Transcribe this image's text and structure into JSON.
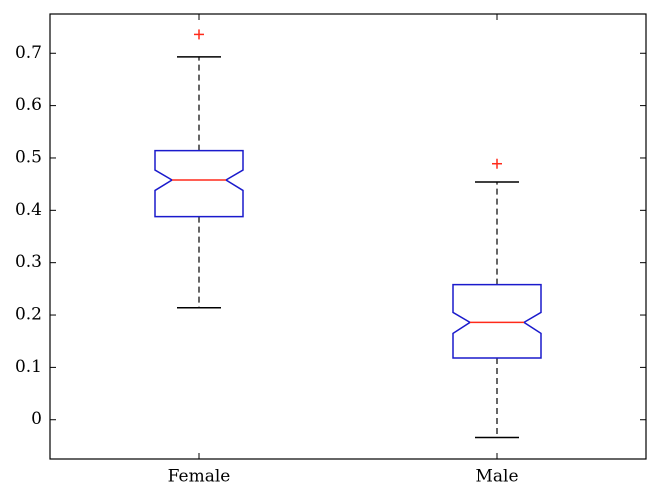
{
  "chart_data": {
    "type": "boxplot",
    "title": "",
    "xlabel": "",
    "ylabel": "",
    "ylim": [
      -0.075,
      0.775
    ],
    "yticks": [
      0,
      0.1,
      0.2,
      0.3,
      0.4,
      0.5,
      0.6,
      0.7
    ],
    "ytick_labels": [
      "0",
      "0.1",
      "0.2",
      "0.3",
      "0.4",
      "0.5",
      "0.6",
      "0.7"
    ],
    "notched": true,
    "grid": false,
    "colors": {
      "box": "#1a1acc",
      "median": "#ff2a1a",
      "outlier": "#ff2a1a",
      "whisker": "#000000"
    },
    "categories": [
      "Female",
      "Male"
    ],
    "boxes": [
      {
        "category": "Female",
        "whisker_low": 0.214,
        "q1": 0.388,
        "notch_low": 0.438,
        "median": 0.458,
        "notch_high": 0.477,
        "q3": 0.514,
        "whisker_high": 0.693,
        "outliers": [
          0.736
        ]
      },
      {
        "category": "Male",
        "whisker_low": -0.034,
        "q1": 0.118,
        "notch_low": 0.165,
        "median": 0.186,
        "notch_high": 0.205,
        "q3": 0.258,
        "whisker_high": 0.454,
        "outliers": [
          0.489
        ]
      }
    ]
  }
}
